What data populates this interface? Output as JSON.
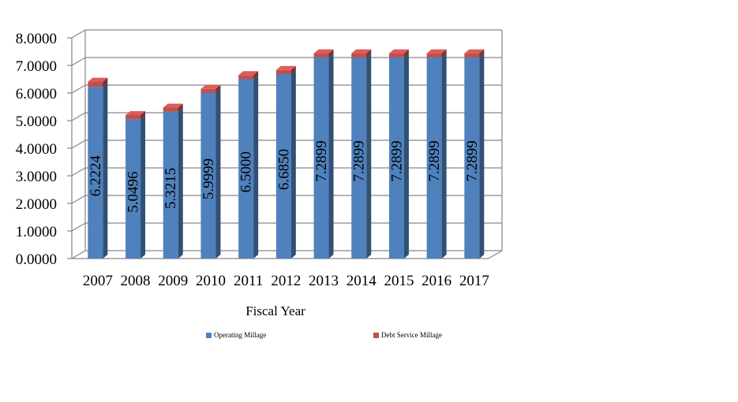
{
  "chart_data": {
    "type": "bar",
    "stacked": true,
    "three_d": true,
    "categories": [
      "2007",
      "2008",
      "2009",
      "2010",
      "2011",
      "2012",
      "2013",
      "2014",
      "2015",
      "2016",
      "2017"
    ],
    "series": [
      {
        "name": "Operating Millage",
        "color": "#4F81BD",
        "values": [
          6.2224,
          5.0496,
          5.3215,
          5.9999,
          6.5,
          6.685,
          7.2899,
          7.2899,
          7.2899,
          7.2899,
          7.2899
        ],
        "labels": [
          "6.2224",
          "5.0496",
          "5.3215",
          "5.9999",
          "6.5000",
          "6.6850",
          "7.2899",
          "7.2899",
          "7.2899",
          "7.2899",
          "7.2899"
        ]
      },
      {
        "name": "Debt Service Millage",
        "color": "#C0504D",
        "values": [
          0.19,
          0.15,
          0.15,
          0.15,
          0.15,
          0.15,
          0.15,
          0.15,
          0.15,
          0.15,
          0.15
        ]
      }
    ],
    "yticks": [
      "0.0000",
      "1.0000",
      "2.0000",
      "3.0000",
      "4.0000",
      "5.0000",
      "6.0000",
      "7.0000",
      "8.0000"
    ],
    "ylim": [
      0,
      8
    ],
    "xlabel": "Fiscal Year",
    "ylabel": "",
    "title": "",
    "grid": true,
    "legend_position": "bottom"
  }
}
